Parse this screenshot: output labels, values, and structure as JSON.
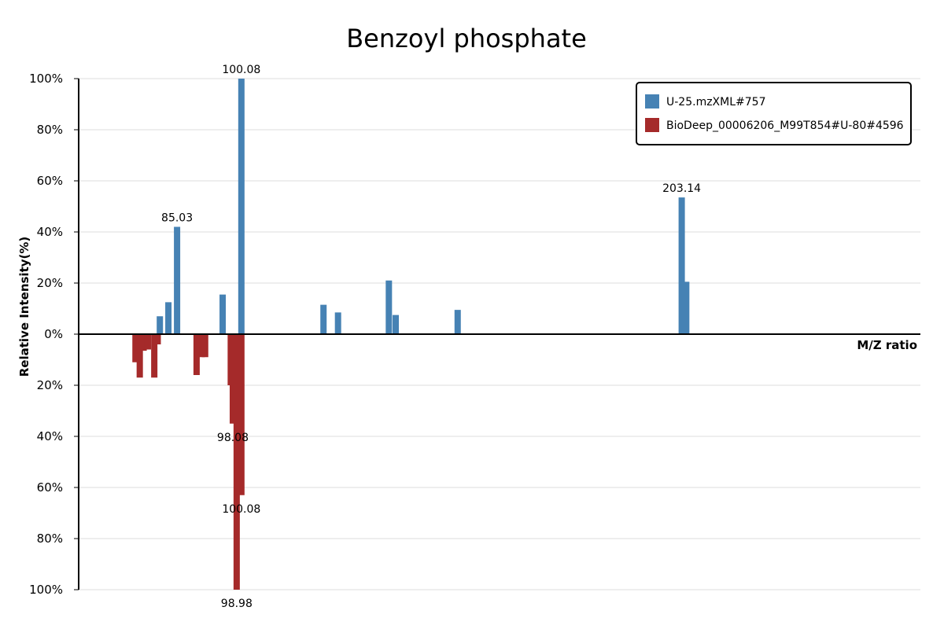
{
  "chart_data": {
    "type": "bar",
    "title": "Benzoyl phosphate",
    "xlabel": "M/Z ratio",
    "ylabel": "Relative Intensity(%)",
    "xlim": [
      62,
      259
    ],
    "ylim": [
      -100,
      100
    ],
    "y_ticks": [
      -100,
      -80,
      -60,
      -40,
      -20,
      0,
      20,
      40,
      60,
      80,
      100
    ],
    "y_tick_labels": [
      "100%",
      "80%",
      "60%",
      "40%",
      "20%",
      "0%",
      "20%",
      "40%",
      "60%",
      "80%",
      "100%"
    ],
    "grid": true,
    "legend_position": "top-right",
    "colors": {
      "query": "#4682b4",
      "reference": "#a52a2a"
    },
    "series": [
      {
        "name": "U-25.mzXML#757",
        "direction": "up",
        "color": "#4682b4",
        "peaks": [
          {
            "mz": 81.0,
            "intensity": 7
          },
          {
            "mz": 83.0,
            "intensity": 12.5
          },
          {
            "mz": 85.03,
            "intensity": 42,
            "label": "85.03"
          },
          {
            "mz": 95.7,
            "intensity": 15.5
          },
          {
            "mz": 100.08,
            "intensity": 100,
            "label": "100.08"
          },
          {
            "mz": 119.3,
            "intensity": 11.5
          },
          {
            "mz": 122.7,
            "intensity": 8.5
          },
          {
            "mz": 134.6,
            "intensity": 21
          },
          {
            "mz": 136.2,
            "intensity": 7.5
          },
          {
            "mz": 150.7,
            "intensity": 9.5
          },
          {
            "mz": 203.14,
            "intensity": 53.5,
            "label": "203.14"
          },
          {
            "mz": 204.2,
            "intensity": 20.5
          }
        ]
      },
      {
        "name": "BioDeep_00006206_M99T854#U-80#4596",
        "direction": "down",
        "color": "#a52a2a",
        "peaks": [
          {
            "mz": 75.3,
            "intensity": 11
          },
          {
            "mz": 76.3,
            "intensity": 17
          },
          {
            "mz": 77.2,
            "intensity": 6.5
          },
          {
            "mz": 78.2,
            "intensity": 6
          },
          {
            "mz": 79.7,
            "intensity": 17
          },
          {
            "mz": 80.5,
            "intensity": 4
          },
          {
            "mz": 89.6,
            "intensity": 16
          },
          {
            "mz": 90.8,
            "intensity": 9
          },
          {
            "mz": 91.6,
            "intensity": 9
          },
          {
            "mz": 98.08,
            "intensity": 35,
            "label": "98.08"
          },
          {
            "mz": 98.98,
            "intensity": 100,
            "label": "98.98"
          },
          {
            "mz": 100.08,
            "intensity": 63,
            "label": "100.08"
          },
          {
            "mz": 97.6,
            "intensity": 20
          },
          {
            "mz": 99.5,
            "intensity": 40
          },
          {
            "mz": 34.0,
            "intensity": 0
          }
        ]
      }
    ]
  }
}
